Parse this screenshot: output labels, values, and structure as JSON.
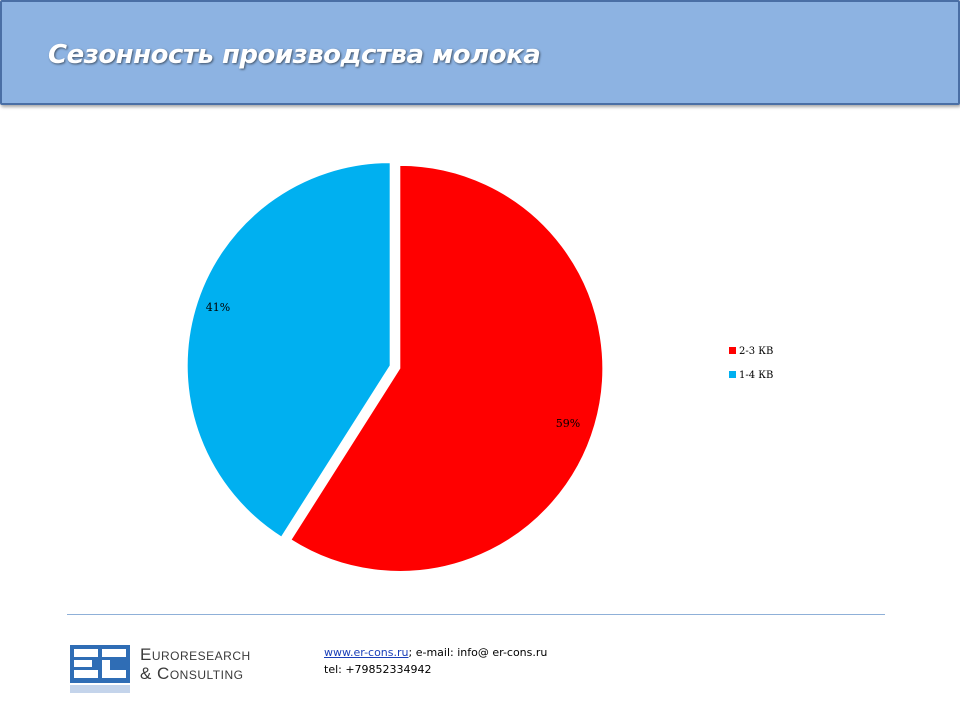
{
  "header": {
    "title": "Сезонность производства молока"
  },
  "chart_data": {
    "type": "pie",
    "title": "",
    "slices": [
      {
        "label": "2-3 КВ",
        "value": 59,
        "display": "59%",
        "color": "#ff0000"
      },
      {
        "label": "1-4 КВ",
        "value": 41,
        "display": "41%",
        "color": "#00b0f0"
      }
    ],
    "legend_position": "right"
  },
  "footer": {
    "logo_line1": "Euroresearch",
    "logo_line2": "& Consulting",
    "website": "www.er-cons.ru",
    "email_text": "; e-mail: info@ er-cons.ru",
    "tel": "tel: +79852334942"
  }
}
